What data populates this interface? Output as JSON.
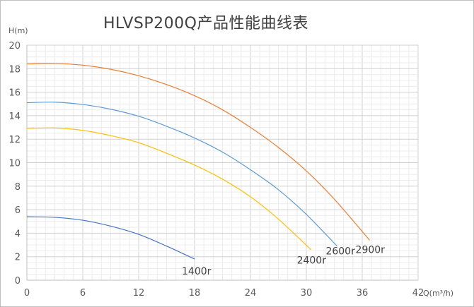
{
  "chart_data": {
    "type": "line",
    "title": "HLVSP200Q产品性能曲线表",
    "xlabel": "Q(m³/h)",
    "ylabel": "H(m)",
    "xlim": [
      0,
      42
    ],
    "ylim": [
      0,
      20
    ],
    "xticks": [
      "0",
      "6",
      "12",
      "18",
      "24",
      "30",
      "36",
      "42"
    ],
    "yticks": [
      "0",
      "2",
      "4",
      "6",
      "8",
      "10",
      "12",
      "14",
      "16",
      "18",
      "20"
    ],
    "grid": true,
    "series": [
      {
        "name": "1400r",
        "color": "#4472c4",
        "x": [
          0,
          3,
          6,
          9,
          12,
          15,
          18
        ],
        "y": [
          5.4,
          5.35,
          5.1,
          4.6,
          3.9,
          2.9,
          1.8
        ]
      },
      {
        "name": "2400r",
        "color": "#ffc000",
        "x": [
          0,
          3,
          6,
          9,
          12,
          15,
          18,
          21,
          24,
          27,
          30.5
        ],
        "y": [
          12.9,
          12.95,
          12.75,
          12.3,
          11.7,
          10.8,
          9.8,
          8.6,
          7.1,
          5.2,
          2.6
        ]
      },
      {
        "name": "2600r",
        "color": "#5b9bd5",
        "x": [
          0,
          3,
          6,
          9,
          12,
          15,
          18,
          21,
          24,
          27,
          30,
          33.3
        ],
        "y": [
          15.1,
          15.15,
          14.95,
          14.55,
          13.95,
          13.1,
          12.1,
          10.9,
          9.4,
          7.7,
          5.6,
          2.9
        ]
      },
      {
        "name": "2900r",
        "color": "#ed7d31",
        "x": [
          0,
          3,
          6,
          9,
          12,
          15,
          18,
          21,
          24,
          27,
          30,
          33,
          36.8
        ],
        "y": [
          18.4,
          18.45,
          18.3,
          17.95,
          17.4,
          16.65,
          15.7,
          14.5,
          13.0,
          11.3,
          9.3,
          6.9,
          3.4
        ]
      }
    ]
  }
}
